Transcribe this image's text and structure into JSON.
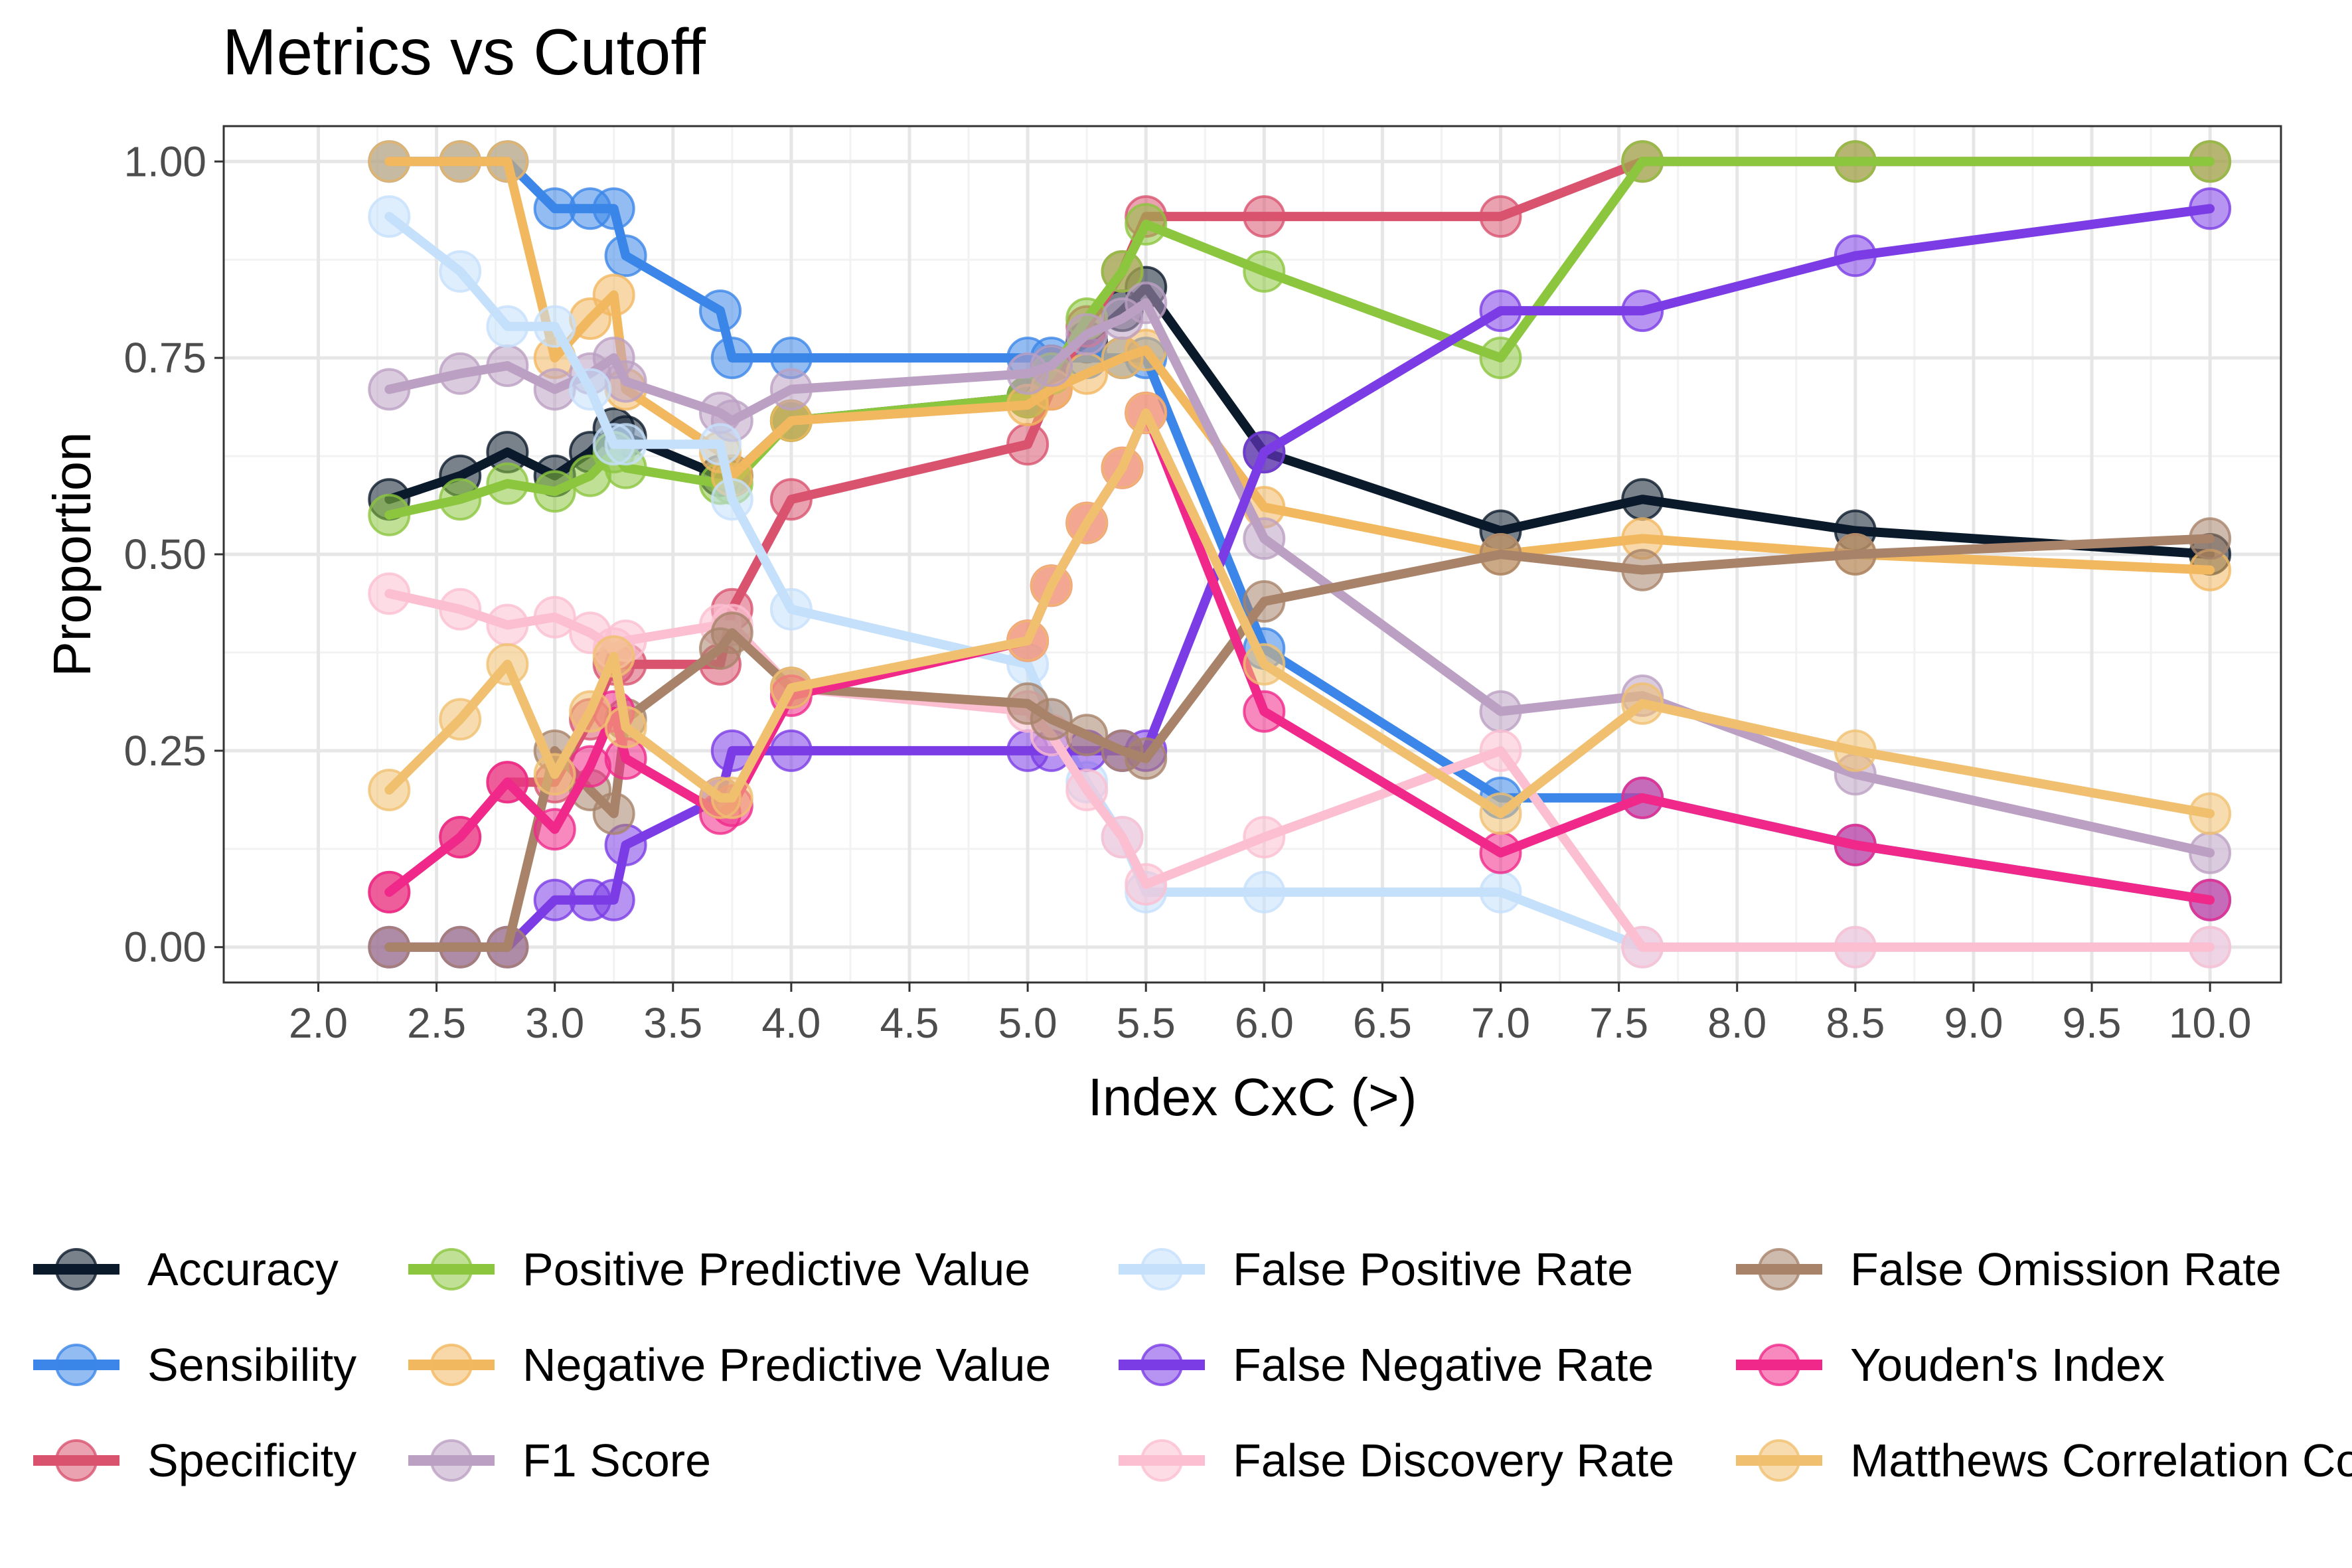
{
  "chart_data": {
    "type": "line",
    "title": "Metrics vs Cutoff",
    "xlabel": "Index CxC (>)",
    "ylabel": "Proportion",
    "xlim": [
      1.6,
      10.3
    ],
    "ylim": [
      -0.045,
      1.045
    ],
    "x_ticks": [
      "2.0",
      "2.5",
      "3.0",
      "3.5",
      "4.0",
      "4.5",
      "5.0",
      "5.5",
      "6.0",
      "6.5",
      "7.0",
      "7.5",
      "8.0",
      "8.5",
      "9.0",
      "9.5",
      "10.0"
    ],
    "y_ticks": [
      "0.00",
      "0.25",
      "0.50",
      "0.75",
      "1.00"
    ],
    "grid": true,
    "legend_position": "bottom",
    "x": [
      2.3,
      2.6,
      2.8,
      3.0,
      3.15,
      3.25,
      3.3,
      3.7,
      3.75,
      4.0,
      5.0,
      5.1,
      5.25,
      5.4,
      5.5,
      6.0,
      7.0,
      7.6,
      8.5,
      10.0
    ],
    "series": [
      {
        "name": "Accuracy",
        "color": "#0b1a2b",
        "values": [
          0.57,
          0.6,
          0.63,
          0.6,
          0.63,
          0.66,
          0.65,
          0.6,
          0.6,
          0.67,
          0.7,
          0.74,
          0.77,
          0.81,
          0.84,
          0.63,
          0.53,
          0.57,
          0.53,
          0.5
        ]
      },
      {
        "name": "Sensibility",
        "color": "#3b86e8",
        "values": [
          1.0,
          1.0,
          1.0,
          0.94,
          0.94,
          0.94,
          0.88,
          0.81,
          0.75,
          0.75,
          0.75,
          0.75,
          0.75,
          0.75,
          0.75,
          0.38,
          0.19,
          0.19,
          0.13,
          0.06
        ]
      },
      {
        "name": "Specificity",
        "color": "#d9536f",
        "values": [
          0.07,
          0.14,
          0.21,
          0.21,
          0.29,
          0.36,
          0.36,
          0.36,
          0.43,
          0.57,
          0.64,
          0.71,
          0.79,
          0.86,
          0.93,
          0.93,
          0.93,
          1.0,
          1.0,
          1.0
        ]
      },
      {
        "name": "Positive Predictive Value",
        "color": "#8cc63f",
        "values": [
          0.55,
          0.57,
          0.59,
          0.58,
          0.6,
          0.63,
          0.61,
          0.59,
          0.59,
          0.67,
          0.7,
          0.73,
          0.8,
          0.86,
          0.92,
          0.86,
          0.75,
          1.0,
          1.0,
          1.0
        ]
      },
      {
        "name": "Negative Predictive Value",
        "color": "#f2b860",
        "values": [
          1.0,
          1.0,
          1.0,
          0.75,
          0.8,
          0.83,
          0.71,
          0.63,
          0.6,
          0.67,
          0.69,
          0.71,
          0.73,
          0.75,
          0.76,
          0.56,
          0.5,
          0.52,
          0.5,
          0.48
        ]
      },
      {
        "name": "F1 Score",
        "color": "#bba0c3",
        "values": [
          0.71,
          0.73,
          0.74,
          0.71,
          0.73,
          0.75,
          0.72,
          0.68,
          0.67,
          0.71,
          0.73,
          0.74,
          0.78,
          0.8,
          0.82,
          0.52,
          0.3,
          0.32,
          0.22,
          0.12
        ]
      },
      {
        "name": "False Positive Rate",
        "color": "#c5e0fb",
        "values": [
          0.93,
          0.86,
          0.79,
          0.79,
          0.71,
          0.64,
          0.64,
          0.64,
          0.57,
          0.43,
          0.36,
          0.29,
          0.21,
          0.14,
          0.07,
          0.07,
          0.07,
          0.0,
          0.0,
          0.0
        ]
      },
      {
        "name": "False Negative Rate",
        "color": "#7b3ce6",
        "values": [
          0.0,
          0.0,
          0.0,
          0.06,
          0.06,
          0.06,
          0.13,
          0.19,
          0.25,
          0.25,
          0.25,
          0.25,
          0.25,
          0.25,
          0.25,
          0.63,
          0.81,
          0.81,
          0.88,
          0.94
        ]
      },
      {
        "name": "False Discovery Rate",
        "color": "#fbbfd1",
        "values": [
          0.45,
          0.43,
          0.41,
          0.42,
          0.4,
          0.38,
          0.39,
          0.41,
          0.41,
          0.33,
          0.3,
          0.27,
          0.2,
          0.14,
          0.08,
          0.14,
          0.25,
          0.0,
          0.0,
          0.0
        ]
      },
      {
        "name": "False Omission Rate",
        "color": "#a8836a",
        "values": [
          0.0,
          0.0,
          0.0,
          0.25,
          0.2,
          0.17,
          0.29,
          0.38,
          0.4,
          0.33,
          0.31,
          0.29,
          0.27,
          0.25,
          0.24,
          0.44,
          0.5,
          0.48,
          0.5,
          0.52
        ]
      },
      {
        "name": "Youden's Index",
        "color": "#f0288a",
        "values": [
          0.07,
          0.14,
          0.21,
          0.15,
          0.23,
          0.3,
          0.24,
          0.17,
          0.18,
          0.32,
          0.39,
          0.46,
          0.54,
          0.61,
          0.68,
          0.3,
          0.12,
          0.19,
          0.13,
          0.06
        ]
      },
      {
        "name": "Matthews Correlation Coefficient",
        "color": "#f0c070",
        "values": [
          0.2,
          0.29,
          0.36,
          0.22,
          0.3,
          0.37,
          0.28,
          0.19,
          0.19,
          0.33,
          0.39,
          0.46,
          0.54,
          0.61,
          0.68,
          0.36,
          0.17,
          0.31,
          0.25,
          0.17
        ]
      }
    ]
  }
}
